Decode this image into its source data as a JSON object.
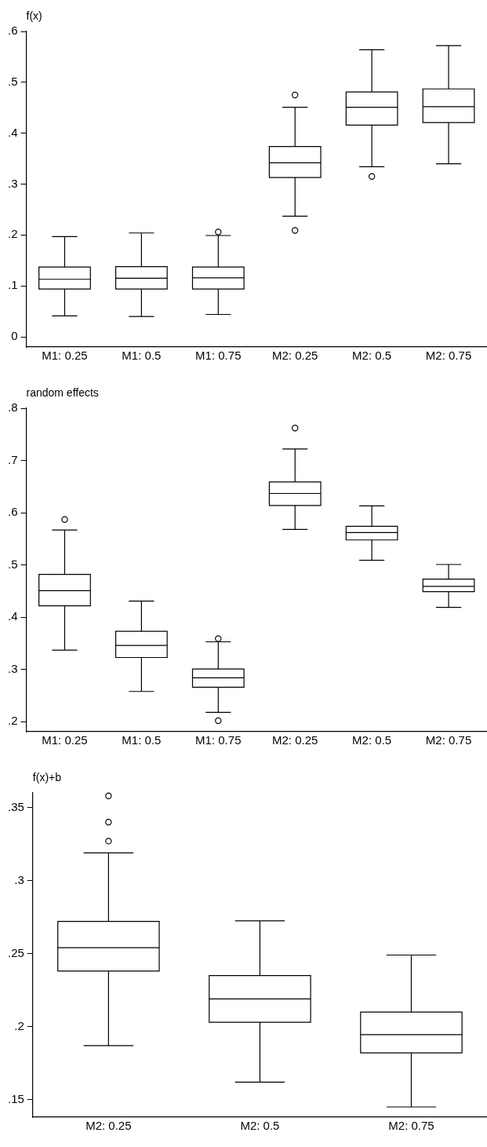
{
  "chart_data": [
    {
      "type": "box",
      "title": "f(x)",
      "categories": [
        "M1: 0.25",
        "M1: 0.5",
        "M1: 0.75",
        "M2: 0.25",
        "M2: 0.5",
        "M2: 0.75"
      ],
      "ylim": [
        -0.02,
        0.6
      ],
      "yticks": [
        0,
        {
          "value": 0.1,
          "label": ".1"
        },
        {
          "value": 0.2,
          "label": ".2"
        },
        {
          "value": 0.3,
          "label": ".3"
        },
        {
          "value": 0.4,
          "label": ".4"
        },
        {
          "value": 0.5,
          "label": ".5"
        },
        {
          "value": 0.6,
          "label": ".6"
        }
      ],
      "boxes": [
        {
          "low": 0.041,
          "q1": 0.094,
          "median": 0.113,
          "q3": 0.137,
          "high": 0.197
        },
        {
          "low": 0.04,
          "q1": 0.094,
          "median": 0.115,
          "q3": 0.138,
          "high": 0.204
        },
        {
          "low": 0.044,
          "q1": 0.094,
          "median": 0.116,
          "q3": 0.137,
          "high": 0.199,
          "outliers": [
            0.206
          ]
        },
        {
          "low": 0.237,
          "q1": 0.313,
          "median": 0.342,
          "q3": 0.374,
          "high": 0.451,
          "outliers": [
            0.475,
            0.209
          ]
        },
        {
          "low": 0.334,
          "q1": 0.416,
          "median": 0.451,
          "q3": 0.481,
          "high": 0.564,
          "outliers": [
            0.315
          ]
        },
        {
          "low": 0.34,
          "q1": 0.421,
          "median": 0.452,
          "q3": 0.487,
          "high": 0.572
        }
      ]
    },
    {
      "type": "box",
      "title": "random effects",
      "categories": [
        "M1: 0.25",
        "M1: 0.5",
        "M1: 0.75",
        "M2: 0.25",
        "M2: 0.5",
        "M2: 0.75"
      ],
      "ylim": [
        0.181,
        0.8
      ],
      "yticks": [
        {
          "value": 0.2,
          "label": ".2"
        },
        {
          "value": 0.3,
          "label": ".3"
        },
        {
          "value": 0.4,
          "label": ".4"
        },
        {
          "value": 0.5,
          "label": ".5"
        },
        {
          "value": 0.6,
          "label": ".6"
        },
        {
          "value": 0.7,
          "label": ".7"
        },
        {
          "value": 0.8,
          "label": ".8"
        }
      ],
      "boxes": [
        {
          "low": 0.337,
          "q1": 0.422,
          "median": 0.451,
          "q3": 0.482,
          "high": 0.567,
          "outliers": [
            0.587
          ]
        },
        {
          "low": 0.258,
          "q1": 0.323,
          "median": 0.346,
          "q3": 0.373,
          "high": 0.431
        },
        {
          "low": 0.218,
          "q1": 0.266,
          "median": 0.284,
          "q3": 0.301,
          "high": 0.353,
          "outliers": [
            0.359,
            0.202
          ]
        },
        {
          "low": 0.568,
          "q1": 0.614,
          "median": 0.637,
          "q3": 0.659,
          "high": 0.722,
          "outliers": [
            0.762
          ]
        },
        {
          "low": 0.509,
          "q1": 0.548,
          "median": 0.562,
          "q3": 0.574,
          "high": 0.613
        },
        {
          "low": 0.419,
          "q1": 0.449,
          "median": 0.459,
          "q3": 0.473,
          "high": 0.501
        }
      ]
    },
    {
      "type": "box",
      "title": "f(x)+b",
      "categories": [
        "M2: 0.25",
        "M2: 0.5",
        "M2: 0.75"
      ],
      "ylim": [
        0.138,
        0.36
      ],
      "yticks": [
        {
          "value": 0.15,
          "label": ".15"
        },
        {
          "value": 0.2,
          "label": ".2"
        },
        {
          "value": 0.25,
          "label": ".25"
        },
        {
          "value": 0.3,
          "label": ".3"
        },
        {
          "value": 0.35,
          "label": ".35"
        }
      ],
      "boxes": [
        {
          "low": 0.187,
          "q1": 0.238,
          "median": 0.254,
          "q3": 0.272,
          "high": 0.319,
          "outliers": [
            0.358,
            0.34,
            0.327
          ]
        },
        {
          "low": 0.162,
          "q1": 0.203,
          "median": 0.219,
          "q3": 0.235,
          "high": 0.2725
        },
        {
          "low": 0.145,
          "q1": 0.182,
          "median": 0.1945,
          "q3": 0.21,
          "high": 0.249
        }
      ]
    }
  ]
}
